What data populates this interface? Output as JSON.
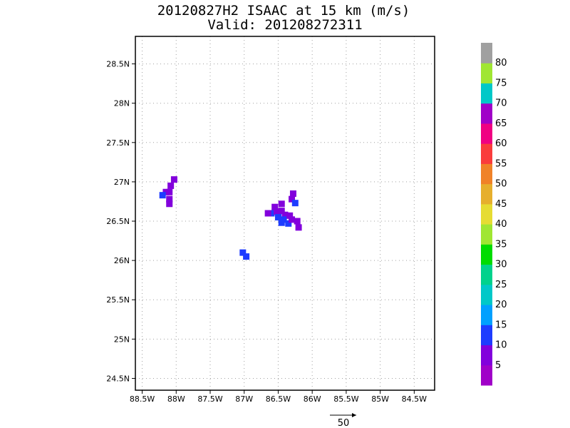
{
  "title": "20120827H2 ISAAC at 15 km (m/s)",
  "subtitle": "Valid: 201208272311",
  "colors": {
    "frame": "#000000",
    "grid": "#a0a0a0"
  },
  "chart_data": {
    "type": "heatmap",
    "title": "20120827H2 ISAAC at 15 km (m/s)",
    "subtitle": "Valid: 201208272311",
    "x_range": [
      -88.6,
      -84.2
    ],
    "y_range": [
      24.35,
      28.85
    ],
    "grid": true,
    "x_ticks": [
      {
        "value": -88.5,
        "label": "88.5W"
      },
      {
        "value": -88.0,
        "label": "88W"
      },
      {
        "value": -87.5,
        "label": "87.5W"
      },
      {
        "value": -87.0,
        "label": "87W"
      },
      {
        "value": -86.5,
        "label": "86.5W"
      },
      {
        "value": -86.0,
        "label": "86W"
      },
      {
        "value": -85.5,
        "label": "85.5W"
      },
      {
        "value": -85.0,
        "label": "85W"
      },
      {
        "value": -84.5,
        "label": "84.5W"
      }
    ],
    "y_ticks": [
      {
        "value": 24.5,
        "label": "24.5N"
      },
      {
        "value": 25.0,
        "label": "25N"
      },
      {
        "value": 25.5,
        "label": "25.5N"
      },
      {
        "value": 26.0,
        "label": "26N"
      },
      {
        "value": 26.5,
        "label": "26.5N"
      },
      {
        "value": 27.0,
        "label": "27N"
      },
      {
        "value": 27.5,
        "label": "27.5N"
      },
      {
        "value": 28.0,
        "label": "28N"
      },
      {
        "value": 28.5,
        "label": "28.5N"
      }
    ],
    "colorbar": {
      "labels": [
        "5",
        "10",
        "15",
        "20",
        "25",
        "30",
        "35",
        "40",
        "45",
        "50",
        "55",
        "60",
        "65",
        "70",
        "75",
        "80"
      ],
      "colors": [
        "#a000c8",
        "#8200dc",
        "#1e3cff",
        "#00a0ff",
        "#00c8c8",
        "#00d28c",
        "#00dc00",
        "#a0e632",
        "#e6dc32",
        "#e6af2d",
        "#f08228",
        "#fa3c3c",
        "#f00082",
        "#a000c8",
        "#00c8c8",
        "#a0e632",
        "#a0a0a0"
      ]
    },
    "cells": [
      {
        "lon": -88.03,
        "lat": 27.03,
        "speed": 6
      },
      {
        "lon": -88.08,
        "lat": 26.95,
        "speed": 6
      },
      {
        "lon": -88.1,
        "lat": 26.87,
        "speed": 5
      },
      {
        "lon": -88.15,
        "lat": 26.87,
        "speed": 7
      },
      {
        "lon": -88.2,
        "lat": 26.83,
        "speed": 11
      },
      {
        "lon": -88.1,
        "lat": 26.78,
        "speed": 6
      },
      {
        "lon": -88.1,
        "lat": 26.72,
        "speed": 6
      },
      {
        "lon": -87.02,
        "lat": 26.1,
        "speed": 13
      },
      {
        "lon": -86.97,
        "lat": 26.05,
        "speed": 13
      },
      {
        "lon": -86.28,
        "lat": 26.85,
        "speed": 6
      },
      {
        "lon": -86.3,
        "lat": 26.78,
        "speed": 7
      },
      {
        "lon": -86.25,
        "lat": 26.73,
        "speed": 13
      },
      {
        "lon": -86.45,
        "lat": 26.72,
        "speed": 7
      },
      {
        "lon": -86.55,
        "lat": 26.68,
        "speed": 7
      },
      {
        "lon": -86.6,
        "lat": 26.6,
        "speed": 12
      },
      {
        "lon": -86.52,
        "lat": 26.62,
        "speed": 6
      },
      {
        "lon": -86.45,
        "lat": 26.63,
        "speed": 6
      },
      {
        "lon": -86.4,
        "lat": 26.58,
        "speed": 9
      },
      {
        "lon": -86.5,
        "lat": 26.55,
        "speed": 14
      },
      {
        "lon": -86.42,
        "lat": 26.52,
        "speed": 12
      },
      {
        "lon": -86.45,
        "lat": 26.48,
        "speed": 13
      },
      {
        "lon": -86.35,
        "lat": 26.47,
        "speed": 12
      },
      {
        "lon": -86.3,
        "lat": 26.52,
        "speed": 6
      },
      {
        "lon": -86.33,
        "lat": 26.57,
        "speed": 7
      },
      {
        "lon": -86.22,
        "lat": 26.5,
        "speed": 6
      },
      {
        "lon": -86.2,
        "lat": 26.42,
        "speed": 6
      },
      {
        "lon": -86.65,
        "lat": 26.6,
        "speed": 7
      }
    ],
    "reference_vector": {
      "label": "50",
      "speed": 50
    }
  }
}
